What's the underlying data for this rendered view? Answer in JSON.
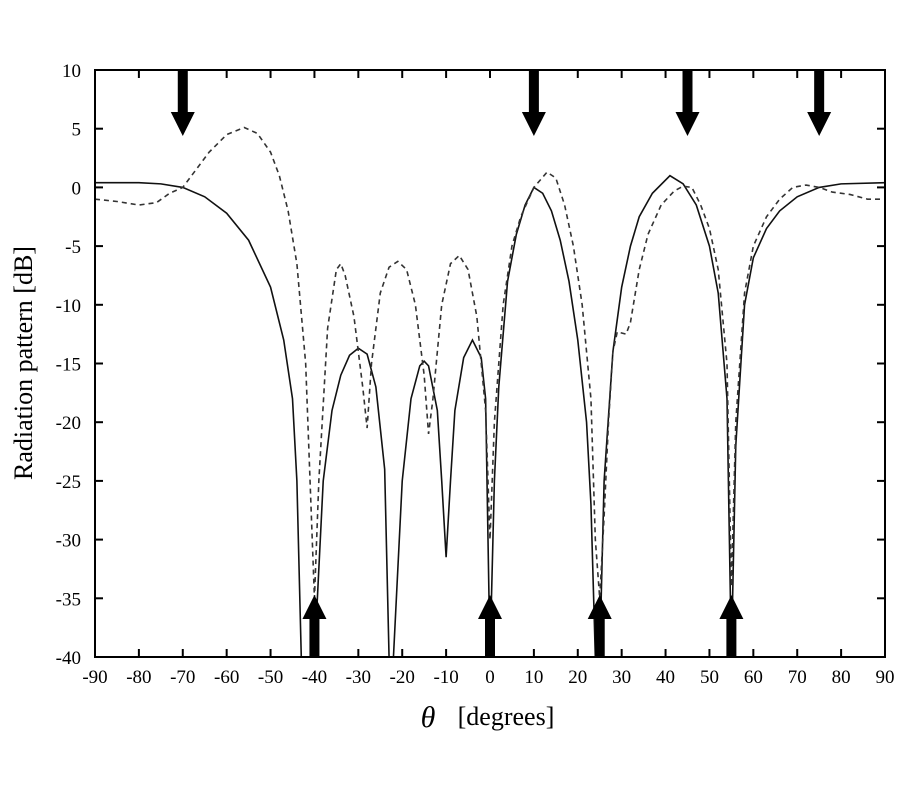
{
  "chart_data": {
    "type": "line",
    "ylabel": "Radiation pattern [dB]",
    "xlabel_symbol": "θ",
    "xlabel": "[degrees]",
    "xlim": [
      -90,
      90
    ],
    "ylim": [
      -40,
      10
    ],
    "xticks": [
      -90,
      -80,
      -70,
      -60,
      -50,
      -40,
      -30,
      -20,
      -10,
      0,
      10,
      20,
      30,
      40,
      50,
      60,
      70,
      80,
      90
    ],
    "yticks": [
      10,
      5,
      0,
      -5,
      -10,
      -15,
      -20,
      -25,
      -30,
      -35,
      -40
    ],
    "series": [
      {
        "color": "#111111",
        "dash": "solid",
        "x": [
          -90,
          -80,
          -75,
          -70,
          -65,
          -60,
          -55,
          -50,
          -47,
          -45,
          -44,
          -43,
          -40,
          -38,
          -36,
          -34,
          -32,
          -30,
          -28,
          -26,
          -24,
          -23,
          -22,
          -20,
          -18,
          -16,
          -15,
          -14,
          -12,
          -11,
          -10,
          -9,
          -8,
          -6,
          -4,
          -2,
          -1,
          0,
          1,
          2,
          4,
          6,
          8,
          10,
          12,
          14,
          16,
          18,
          20,
          22,
          23,
          24,
          25,
          26,
          28,
          30,
          32,
          34,
          37,
          41,
          44,
          47,
          50,
          52,
          54,
          55,
          56,
          58,
          60,
          63,
          66,
          70,
          75,
          80,
          90
        ],
        "values": [
          0.4,
          0.4,
          0.3,
          0,
          -0.8,
          -2.2,
          -4.5,
          -8.5,
          -13,
          -18,
          -25,
          -40,
          -40,
          -25,
          -19,
          -16,
          -14.3,
          -13.7,
          -14.2,
          -17,
          -24,
          -40,
          -40,
          -25,
          -18,
          -15.2,
          -14.8,
          -15.2,
          -19,
          -25,
          -31.5,
          -25,
          -19,
          -14.5,
          -13,
          -14.5,
          -18,
          -40,
          -25,
          -17,
          -8,
          -4,
          -1.5,
          0,
          -0.5,
          -2,
          -4.5,
          -8,
          -13,
          -20,
          -27,
          -40,
          -40,
          -25,
          -14,
          -8.5,
          -5,
          -2.5,
          -0.5,
          1,
          0.3,
          -1.5,
          -5,
          -9,
          -18,
          -40,
          -22,
          -10,
          -6,
          -3.5,
          -2,
          -0.8,
          0,
          0.3,
          0.4
        ]
      },
      {
        "color": "#333333",
        "dash": "dashed",
        "x": [
          -90,
          -85,
          -80,
          -76,
          -73,
          -70,
          -67,
          -64,
          -60,
          -56,
          -53,
          -50,
          -48,
          -46,
          -44,
          -42,
          -41,
          -40,
          -39,
          -37,
          -35,
          -34,
          -33,
          -31,
          -29,
          -28,
          -27,
          -25,
          -23,
          -21,
          -19,
          -17,
          -15,
          -14,
          -13,
          -11,
          -9,
          -7,
          -5,
          -3,
          -1,
          0,
          1,
          3,
          5,
          7,
          10,
          13,
          15,
          17,
          19,
          21,
          23,
          24,
          25,
          26,
          27,
          28,
          29,
          31,
          32,
          34,
          36,
          39,
          42,
          44,
          46,
          48,
          50,
          52,
          54,
          55,
          56,
          58,
          60,
          63,
          66,
          69,
          72,
          75,
          78,
          82,
          86,
          90
        ],
        "values": [
          -1,
          -1.2,
          -1.5,
          -1.3,
          -0.5,
          0,
          1.5,
          3,
          4.5,
          5.1,
          4.6,
          3,
          1,
          -2,
          -6.5,
          -15,
          -25,
          -35,
          -25,
          -12,
          -7,
          -6.5,
          -7.5,
          -11,
          -17,
          -20.5,
          -15,
          -9,
          -6.8,
          -6.3,
          -7,
          -10,
          -16,
          -21,
          -18,
          -10,
          -6.5,
          -5.8,
          -7,
          -11,
          -19,
          -30,
          -20,
          -10,
          -5,
          -2.5,
          0,
          1.3,
          0.8,
          -1.5,
          -5,
          -10,
          -18,
          -30,
          -35,
          -28,
          -20,
          -14,
          -12.3,
          -12.5,
          -11.5,
          -7,
          -4,
          -1.5,
          -0.3,
          0.1,
          0,
          -1.5,
          -3.5,
          -7,
          -15,
          -34,
          -20,
          -9,
          -5,
          -2.5,
          -1,
          0,
          0.2,
          0,
          -0.4,
          -0.6,
          -1,
          -1
        ]
      }
    ],
    "arrows_down": [
      -70,
      10,
      45,
      75
    ],
    "arrows_up": [
      -40,
      0,
      25,
      55
    ]
  }
}
